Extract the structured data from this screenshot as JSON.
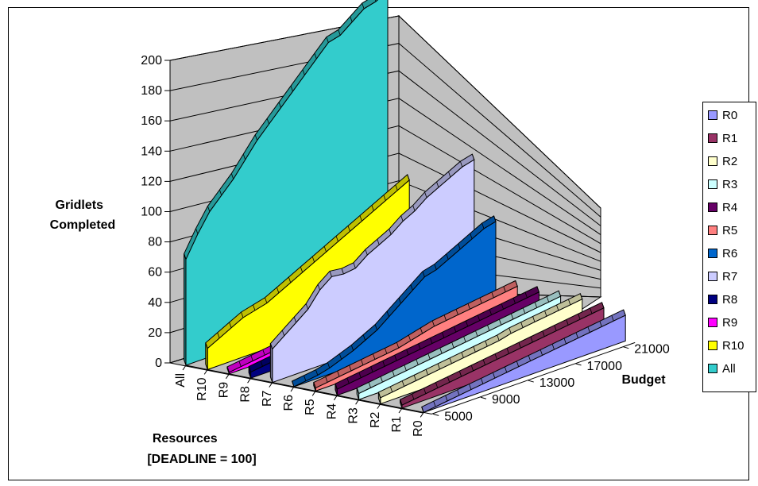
{
  "chart_data": {
    "type": "area",
    "variant": "3d-ribbon",
    "title": "",
    "zlabel_lines": [
      "Gridlets",
      "Completed"
    ],
    "xlabel": "Budget",
    "ylabel_lines": [
      "Resources",
      "[DEADLINE = 100]"
    ],
    "zlim": [
      0,
      200
    ],
    "z_ticks": [
      0,
      20,
      40,
      60,
      80,
      100,
      120,
      140,
      160,
      180,
      200
    ],
    "budget_ticks": [
      5000,
      9000,
      13000,
      17000,
      21000
    ],
    "budget": [
      5000,
      6000,
      7000,
      8000,
      9000,
      10000,
      11000,
      12000,
      13000,
      14000,
      15000,
      16000,
      17000,
      18000,
      19000,
      20000,
      21000,
      22000
    ],
    "grid": true,
    "legend_position": "right",
    "resource_ticks": [
      "All",
      "R10",
      "R9",
      "R8",
      "R7",
      "R6",
      "R5",
      "R4",
      "R3",
      "R2",
      "R1",
      "R0"
    ],
    "series": [
      {
        "name": "R0",
        "color": "#9999ff",
        "values": [
          0,
          1,
          2,
          3,
          4,
          5,
          6,
          7,
          8,
          9,
          10,
          11,
          12,
          13,
          14,
          15,
          16,
          17
        ]
      },
      {
        "name": "R1",
        "color": "#993366",
        "values": [
          2,
          3,
          4,
          5,
          6,
          7,
          8,
          9,
          10,
          11,
          12,
          13,
          14,
          15,
          16,
          17,
          18,
          19
        ]
      },
      {
        "name": "R2",
        "color": "#ffffcc",
        "values": [
          4,
          5,
          6,
          7,
          8,
          9,
          10,
          11,
          12,
          13,
          14,
          16,
          17,
          18,
          19,
          20,
          21,
          22
        ]
      },
      {
        "name": "R3",
        "color": "#ccffff",
        "values": [
          4,
          5,
          6,
          7,
          8,
          9,
          10,
          11,
          12,
          13,
          14,
          15,
          16,
          17,
          18,
          19,
          20,
          21
        ]
      },
      {
        "name": "R4",
        "color": "#660066",
        "values": [
          4,
          5,
          6,
          7,
          8,
          9,
          10,
          11,
          12,
          13,
          14,
          15,
          16,
          17,
          18,
          19,
          20,
          21
        ]
      },
      {
        "name": "R5",
        "color": "#ff8080",
        "values": [
          2,
          3,
          4,
          5,
          6,
          7,
          8,
          9,
          11,
          13,
          15,
          16,
          17,
          18,
          19,
          20,
          21,
          22
        ]
      },
      {
        "name": "R6",
        "color": "#0066cc",
        "values": [
          0,
          1,
          2,
          4,
          7,
          10,
          14,
          18,
          24,
          30,
          36,
          42,
          44,
          48,
          52,
          56,
          60,
          62
        ]
      },
      {
        "name": "R7",
        "color": "#ccccff",
        "values": [
          22,
          28,
          34,
          40,
          50,
          56,
          55,
          56,
          62,
          66,
          70,
          76,
          80,
          86,
          90,
          94,
          98,
          100
        ]
      },
      {
        "name": "R8",
        "color": "#000080",
        "values": [
          4,
          5,
          6,
          7,
          8,
          9,
          10,
          11,
          12,
          13,
          14,
          15,
          16,
          17,
          18,
          19,
          20,
          21
        ]
      },
      {
        "name": "R9",
        "color": "#ff00ff",
        "values": [
          1,
          2,
          3,
          4,
          5,
          6,
          7,
          8,
          9,
          10,
          11,
          12,
          13,
          14,
          15,
          16,
          17,
          18
        ]
      },
      {
        "name": "R10",
        "color": "#ffff00",
        "values": [
          14,
          18,
          22,
          26,
          28,
          30,
          34,
          38,
          42,
          46,
          50,
          54,
          58,
          62,
          66,
          70,
          74,
          78
        ]
      },
      {
        "name": "All",
        "color": "#33cccc",
        "values": [
          70,
          84,
          96,
          104,
          112,
          122,
          132,
          140,
          148,
          156,
          164,
          172,
          180,
          182,
          188,
          194,
          196,
          200
        ]
      }
    ]
  }
}
